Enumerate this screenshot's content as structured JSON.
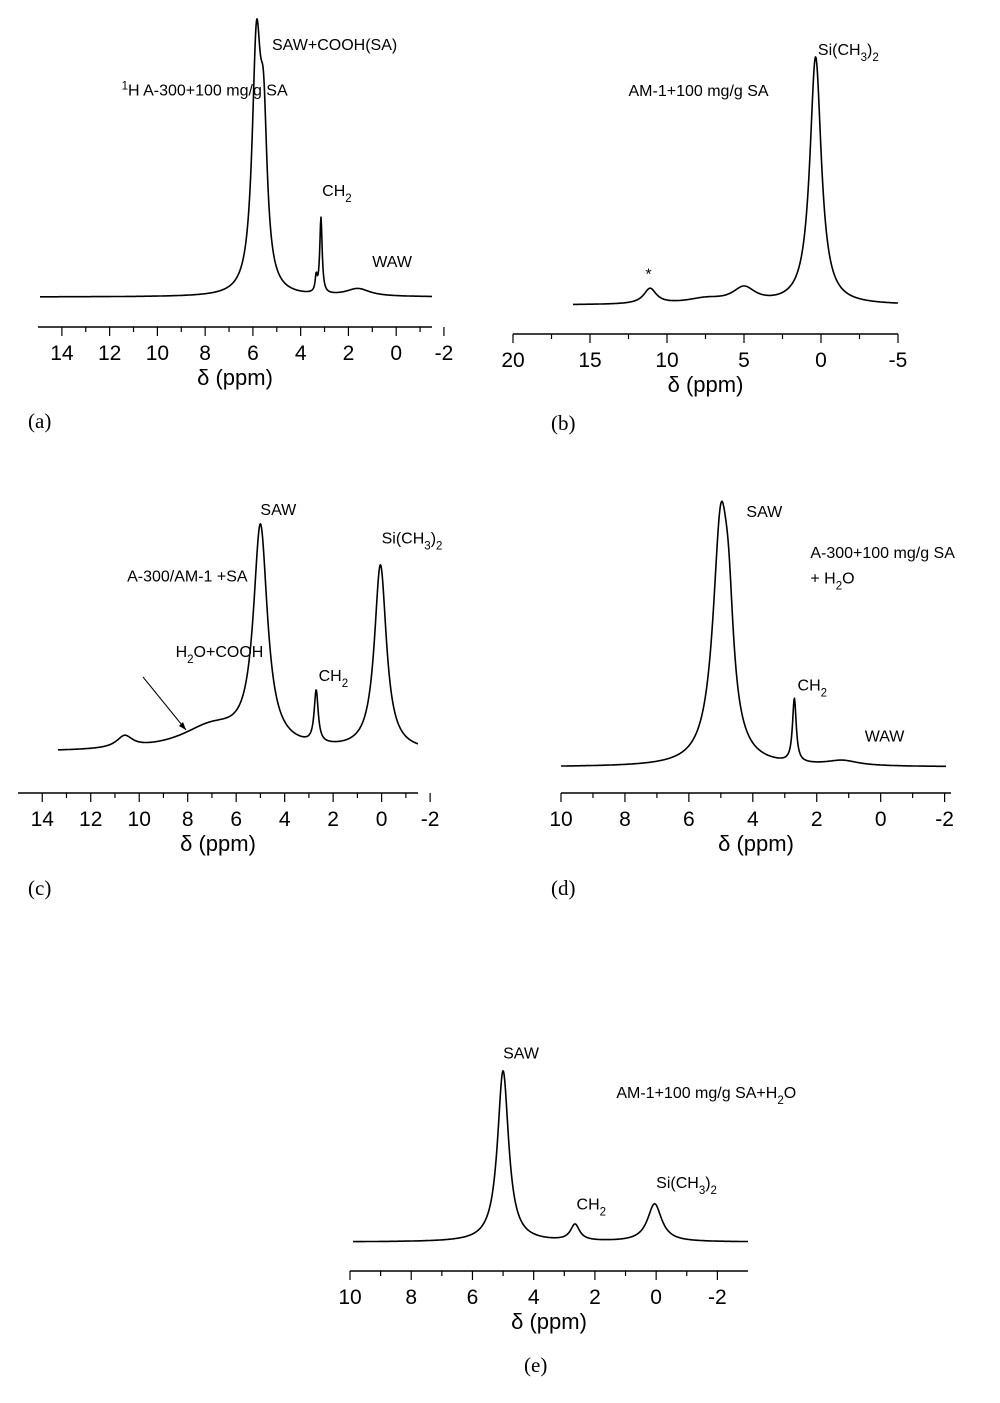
{
  "chart_data": [
    {
      "type": "line",
      "panel_label": "(a)",
      "xlabel": "δ (ppm)",
      "xlim": [
        15,
        -1.5
      ],
      "x_ticks": [
        14,
        12,
        10,
        8,
        6,
        4,
        2,
        0,
        -2
      ],
      "x_tick_labels": [
        "14",
        "12",
        "10",
        "8",
        "6",
        "4",
        "2",
        "0",
        "-2"
      ],
      "annotations": [
        {
          "text": "¹H A-300+100 mg/g SA",
          "x": 11.5,
          "y": 0.8
        },
        {
          "text": "SAW+COOH(SA)",
          "x": 5.2,
          "y": 0.98
        },
        {
          "text": "CH₂",
          "x": 3.1,
          "y": 0.4
        },
        {
          "text": "WAW",
          "x": 1.0,
          "y": 0.12
        }
      ],
      "series": [
        {
          "peaks": [
            [
              5.85,
              0.95,
              0.22
            ],
            [
              5.55,
              0.55,
              0.18
            ],
            [
              3.15,
              0.3,
              0.06
            ],
            [
              3.35,
              0.06,
              0.05
            ],
            [
              1.6,
              0.03,
              0.6
            ]
          ],
          "baseline": 0.0
        }
      ]
    },
    {
      "type": "line",
      "panel_label": "(b)",
      "xlabel": "δ (ppm)",
      "xlim": [
        20,
        -5
      ],
      "x_ticks": [
        20,
        15,
        10,
        5,
        0,
        -5
      ],
      "x_tick_labels": [
        "20",
        "15",
        "10",
        "5",
        "0",
        "-5"
      ],
      "annotations": [
        {
          "text": "AM-1+100 mg/g SA",
          "x": 12.5,
          "y": 0.82
        },
        {
          "text": "Si(CH₃)₂",
          "x": 0.2,
          "y": 0.98
        },
        {
          "text": "*",
          "x": 11.2,
          "y": 0.1
        }
      ],
      "series": [
        {
          "peaks": [
            [
              0.35,
              0.97,
              0.45
            ],
            [
              11.1,
              0.06,
              0.5
            ],
            [
              5.0,
              0.06,
              0.9
            ],
            [
              7.5,
              0.02,
              1.5
            ]
          ],
          "baseline": 0.0
        }
      ]
    },
    {
      "type": "line",
      "panel_label": "(c)",
      "xlabel": "δ (ppm)",
      "xlim": [
        15,
        -1.5
      ],
      "x_ticks": [
        14,
        12,
        10,
        8,
        6,
        4,
        2,
        0,
        -2
      ],
      "x_tick_labels": [
        "14",
        "12",
        "10",
        "8",
        "6",
        "4",
        "2",
        "0",
        "-2"
      ],
      "annotations": [
        {
          "text": "SAW",
          "x": 5.0,
          "y": 1.0
        },
        {
          "text": "Si(CH₃)₂",
          "x": 0.0,
          "y": 0.88
        },
        {
          "text": "A-300/AM-1 +SA",
          "x": 10.5,
          "y": 0.72
        },
        {
          "text": "H₂O+COOH",
          "x": 8.5,
          "y": 0.4
        },
        {
          "text": "CH₂",
          "x": 2.6,
          "y": 0.3
        }
      ],
      "series": [
        {
          "peaks": [
            [
              5.0,
              0.92,
              0.35
            ],
            [
              0.05,
              0.78,
              0.3
            ],
            [
              2.7,
              0.22,
              0.1
            ],
            [
              10.6,
              0.05,
              0.4
            ],
            [
              7.0,
              0.1,
              1.6
            ]
          ],
          "baseline": 0.0
        }
      ]
    },
    {
      "type": "line",
      "panel_label": "(d)",
      "xlabel": "δ (ppm)",
      "xlim": [
        10,
        -2.2
      ],
      "x_ticks": [
        10,
        8,
        6,
        4,
        2,
        0,
        -2
      ],
      "x_tick_labels": [
        "10",
        "8",
        "6",
        "4",
        "2",
        "0",
        "-2"
      ],
      "annotations": [
        {
          "text": "SAW",
          "x": 4.2,
          "y": 0.98
        },
        {
          "text": "A-300+100 mg/g SA",
          "x": 2.2,
          "y": 0.82
        },
        {
          "text": "+ H₂O",
          "x": 2.2,
          "y": 0.72
        },
        {
          "text": "CH₂",
          "x": 2.6,
          "y": 0.3
        },
        {
          "text": "WAW",
          "x": 0.5,
          "y": 0.1
        }
      ],
      "series": [
        {
          "peaks": [
            [
              5.0,
              0.93,
              0.3
            ],
            [
              4.75,
              0.3,
              0.18
            ],
            [
              2.7,
              0.25,
              0.07
            ],
            [
              1.2,
              0.02,
              0.6
            ]
          ],
          "baseline": 0.0
        }
      ]
    },
    {
      "type": "line",
      "panel_label": "(e)",
      "xlabel": "δ (ppm)",
      "xlim": [
        10,
        -3
      ],
      "x_ticks": [
        10,
        8,
        6,
        4,
        2,
        0,
        -2
      ],
      "x_tick_labels": [
        "10",
        "8",
        "6",
        "4",
        "2",
        "0",
        "-2"
      ],
      "annotations": [
        {
          "text": "SAW",
          "x": 5.0,
          "y": 1.02
        },
        {
          "text": "AM-1+100 mg/g SA+H₂O",
          "x": 1.3,
          "y": 0.8
        },
        {
          "text": "CH₂",
          "x": 2.6,
          "y": 0.18
        },
        {
          "text": "Si(CH₃)₂",
          "x": 0.0,
          "y": 0.3
        }
      ],
      "series": [
        {
          "peaks": [
            [
              5.0,
              0.95,
              0.22
            ],
            [
              2.65,
              0.09,
              0.18
            ],
            [
              0.05,
              0.21,
              0.28
            ]
          ],
          "baseline": 0.0
        }
      ]
    }
  ]
}
